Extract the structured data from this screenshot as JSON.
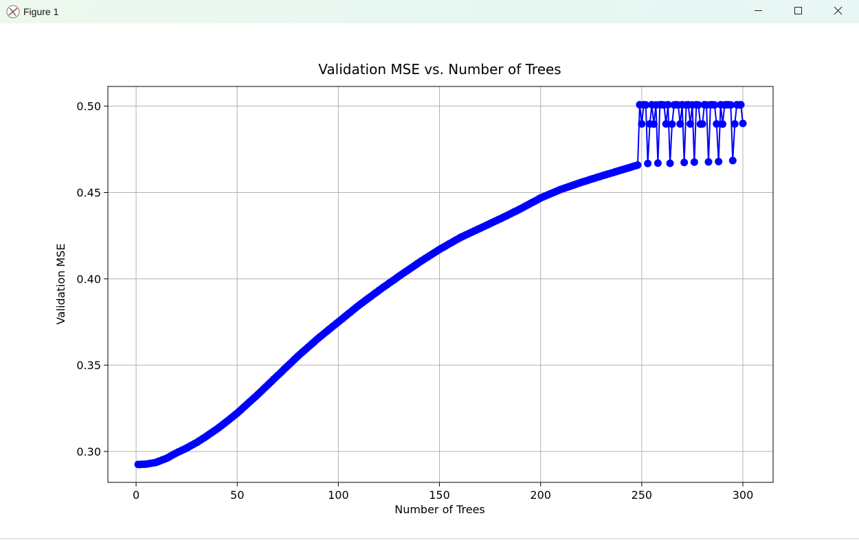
{
  "window": {
    "title": "Figure 1"
  },
  "chart_data": {
    "type": "line",
    "title": "Validation MSE vs. Number of Trees",
    "x_label": "Number of Trees",
    "y_label": "Validation MSE",
    "color": "#0000ff",
    "marker": "o",
    "grid": true,
    "xlim": [
      -13.95,
      314.95
    ],
    "ylim": [
      0.2821,
      0.5114
    ],
    "xticks": [
      0,
      50,
      100,
      150,
      200,
      250,
      300
    ],
    "yticks": [
      {
        "value": 0.3,
        "label": "0.30"
      },
      0.35,
      {
        "value": 0.4,
        "label": "0.40"
      },
      0.45,
      {
        "value": 0.5,
        "label": "0.50"
      }
    ],
    "x": [
      1,
      2,
      3,
      4,
      5,
      6,
      7,
      8,
      9,
      10,
      11,
      12,
      13,
      14,
      15,
      16,
      17,
      18,
      19,
      20,
      21,
      22,
      23,
      24,
      25,
      26,
      27,
      28,
      29,
      30,
      31,
      32,
      33,
      34,
      35,
      36,
      37,
      38,
      39,
      40,
      41,
      42,
      43,
      44,
      45,
      46,
      47,
      48,
      49,
      50,
      51,
      52,
      53,
      54,
      55,
      56,
      57,
      58,
      59,
      60,
      61,
      62,
      63,
      64,
      65,
      66,
      67,
      68,
      69,
      70,
      71,
      72,
      73,
      74,
      75,
      76,
      77,
      78,
      79,
      80,
      81,
      82,
      83,
      84,
      85,
      86,
      87,
      88,
      89,
      90,
      91,
      92,
      93,
      94,
      95,
      96,
      97,
      98,
      99,
      100,
      101,
      102,
      103,
      104,
      105,
      106,
      107,
      108,
      109,
      110,
      111,
      112,
      113,
      114,
      115,
      116,
      117,
      118,
      119,
      120,
      121,
      122,
      123,
      124,
      125,
      126,
      127,
      128,
      129,
      130,
      131,
      132,
      133,
      134,
      135,
      136,
      137,
      138,
      139,
      140,
      141,
      142,
      143,
      144,
      145,
      146,
      147,
      148,
      149,
      150,
      151,
      152,
      153,
      154,
      155,
      156,
      157,
      158,
      159,
      160,
      161,
      162,
      163,
      164,
      165,
      166,
      167,
      168,
      169,
      170,
      171,
      172,
      173,
      174,
      175,
      176,
      177,
      178,
      179,
      180,
      181,
      182,
      183,
      184,
      185,
      186,
      187,
      188,
      189,
      190,
      191,
      192,
      193,
      194,
      195,
      196,
      197,
      198,
      199,
      200,
      201,
      202,
      203,
      204,
      205,
      206,
      207,
      208,
      209,
      210,
      211,
      212,
      213,
      214,
      215,
      216,
      217,
      218,
      219,
      220,
      221,
      222,
      223,
      224,
      225,
      226,
      227,
      228,
      229,
      230,
      231,
      232,
      233,
      234,
      235,
      236,
      237,
      238,
      239,
      240,
      241,
      242,
      243,
      244,
      245,
      246,
      247,
      248,
      249,
      250,
      251,
      252,
      253,
      254,
      255,
      256,
      257,
      258,
      259,
      260,
      261,
      262,
      263,
      264,
      265,
      266,
      267,
      268,
      269,
      270,
      271,
      272,
      273,
      274,
      275,
      276,
      277,
      278,
      279,
      280,
      281,
      282,
      283,
      284,
      285,
      286,
      287,
      288,
      289,
      290,
      291,
      292,
      293,
      294,
      295,
      296,
      297,
      298,
      299,
      300
    ],
    "values": [
      0.2925,
      0.2925,
      0.2926,
      0.2926,
      0.2927,
      0.2929,
      0.2931,
      0.2933,
      0.2935,
      0.2937,
      0.2942,
      0.2946,
      0.2951,
      0.2955,
      0.296,
      0.2966,
      0.2973,
      0.2979,
      0.2986,
      0.2992,
      0.2998,
      0.3003,
      0.3009,
      0.3014,
      0.302,
      0.3026,
      0.3033,
      0.3039,
      0.3046,
      0.3052,
      0.306,
      0.3067,
      0.3075,
      0.3082,
      0.309,
      0.3098,
      0.3106,
      0.3114,
      0.3122,
      0.313,
      0.3139,
      0.3148,
      0.3157,
      0.3166,
      0.3175,
      0.3184,
      0.3194,
      0.3203,
      0.3213,
      0.3222,
      0.3233,
      0.3243,
      0.3254,
      0.3264,
      0.3275,
      0.3286,
      0.3296,
      0.3307,
      0.3317,
      0.3328,
      0.3339,
      0.335,
      0.3362,
      0.3373,
      0.3384,
      0.3395,
      0.3406,
      0.3418,
      0.3429,
      0.344,
      0.3451,
      0.3462,
      0.3474,
      0.3485,
      0.3496,
      0.3507,
      0.3518,
      0.353,
      0.3541,
      0.3552,
      0.3562,
      0.3573,
      0.3583,
      0.3593,
      0.3604,
      0.3614,
      0.3624,
      0.3634,
      0.3645,
      0.3655,
      0.3665,
      0.3674,
      0.3684,
      0.3693,
      0.3703,
      0.3712,
      0.3722,
      0.3731,
      0.3741,
      0.375,
      0.376,
      0.3769,
      0.3779,
      0.3788,
      0.3798,
      0.3807,
      0.3817,
      0.3826,
      0.3836,
      0.3845,
      0.3854,
      0.3862,
      0.3871,
      0.388,
      0.3889,
      0.3897,
      0.3906,
      0.3915,
      0.3923,
      0.3932,
      0.394,
      0.3949,
      0.3957,
      0.3965,
      0.3974,
      0.3982,
      0.399,
      0.3998,
      0.4007,
      0.4015,
      0.4023,
      0.4031,
      0.4039,
      0.4047,
      0.4055,
      0.4063,
      0.4071,
      0.4079,
      0.4087,
      0.4095,
      0.4103,
      0.411,
      0.4118,
      0.4125,
      0.4133,
      0.414,
      0.4148,
      0.4155,
      0.4163,
      0.417,
      0.4177,
      0.4183,
      0.419,
      0.4197,
      0.4204,
      0.421,
      0.4217,
      0.4224,
      0.423,
      0.4237,
      0.4243,
      0.4248,
      0.4254,
      0.4259,
      0.4265,
      0.427,
      0.4276,
      0.4281,
      0.4287,
      0.4292,
      0.4298,
      0.4303,
      0.4309,
      0.4314,
      0.432,
      0.4325,
      0.4331,
      0.4336,
      0.4342,
      0.4347,
      0.4353,
      0.4359,
      0.4364,
      0.437,
      0.4376,
      0.4382,
      0.4388,
      0.4393,
      0.4399,
      0.4405,
      0.4411,
      0.4418,
      0.4424,
      0.443,
      0.4437,
      0.4443,
      0.4449,
      0.4455,
      0.4462,
      0.4468,
      0.4473,
      0.4478,
      0.4483,
      0.4488,
      0.4493,
      0.4498,
      0.4503,
      0.4508,
      0.4513,
      0.4518,
      0.4522,
      0.4526,
      0.453,
      0.4534,
      0.4538,
      0.4542,
      0.4546,
      0.455,
      0.4554,
      0.4558,
      0.4562,
      0.4565,
      0.4569,
      0.4573,
      0.4577,
      0.458,
      0.4584,
      0.4588,
      0.4591,
      0.4595,
      0.4599,
      0.4602,
      0.4606,
      0.4609,
      0.4613,
      0.4616,
      0.462,
      0.4623,
      0.4627,
      0.463,
      0.4634,
      0.4637,
      0.4641,
      0.4644,
      0.4648,
      0.4652,
      0.4655,
      0.4659,
      0.5008,
      0.4897,
      0.5008,
      0.5007,
      0.4668,
      0.4897,
      0.5008,
      0.4896,
      0.5007,
      0.467,
      0.5008,
      0.5008,
      0.5007,
      0.4897,
      0.5008,
      0.4669,
      0.4896,
      0.5007,
      0.5008,
      0.5007,
      0.4897,
      0.5008,
      0.4674,
      0.5007,
      0.5008,
      0.4897,
      0.5007,
      0.4676,
      0.5008,
      0.5007,
      0.4896,
      0.4897,
      0.5008,
      0.5007,
      0.4677,
      0.5008,
      0.5008,
      0.5007,
      0.4897,
      0.4679,
      0.5008,
      0.4896,
      0.5007,
      0.5008,
      0.5008,
      0.5007,
      0.4685,
      0.4897,
      0.5008,
      0.5007,
      0.5008,
      0.49
    ]
  }
}
